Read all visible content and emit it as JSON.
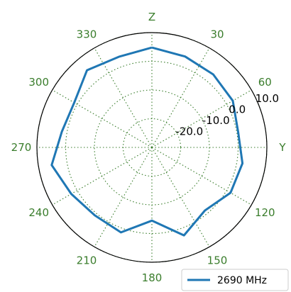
{
  "chart_data": {
    "type": "polar-line",
    "angle_zero": "top",
    "angle_direction": "clockwise",
    "angle_tick_labels": [
      {
        "angle": 0,
        "label": "Z"
      },
      {
        "angle": 30,
        "label": "30"
      },
      {
        "angle": 60,
        "label": "60"
      },
      {
        "angle": 90,
        "label": "Y"
      },
      {
        "angle": 120,
        "label": "120"
      },
      {
        "angle": 150,
        "label": "150"
      },
      {
        "angle": 180,
        "label": "180"
      },
      {
        "angle": 210,
        "label": "210"
      },
      {
        "angle": 240,
        "label": "240"
      },
      {
        "angle": 270,
        "label": "270"
      },
      {
        "angle": 300,
        "label": "300"
      },
      {
        "angle": 330,
        "label": "330"
      }
    ],
    "radial_ticks": [
      -20,
      -10,
      0,
      10
    ],
    "radial_tick_labels": [
      "-20.0",
      "-10.0",
      "0.0",
      "10.0"
    ],
    "r_range": [
      -30,
      10
    ],
    "grid": true,
    "grid_color": "#3a7d2c",
    "legend_position": "bottom-right",
    "series": [
      {
        "name": "2690 MHz",
        "color": "#1f77b4",
        "theta": [
          0,
          20,
          40,
          60,
          80,
          100,
          120,
          140,
          160,
          180,
          200,
          220,
          240,
          260,
          280,
          300,
          320,
          340,
          360
        ],
        "r": [
          4.8,
          3.7,
          3.2,
          2.5,
          0.5,
          2.0,
          1.6,
          -1.3,
          2.6,
          -4.5,
          1.5,
          0.9,
          2.4,
          5.4,
          1.8,
          1.2,
          5.1,
          3.6,
          4.8
        ]
      }
    ]
  }
}
